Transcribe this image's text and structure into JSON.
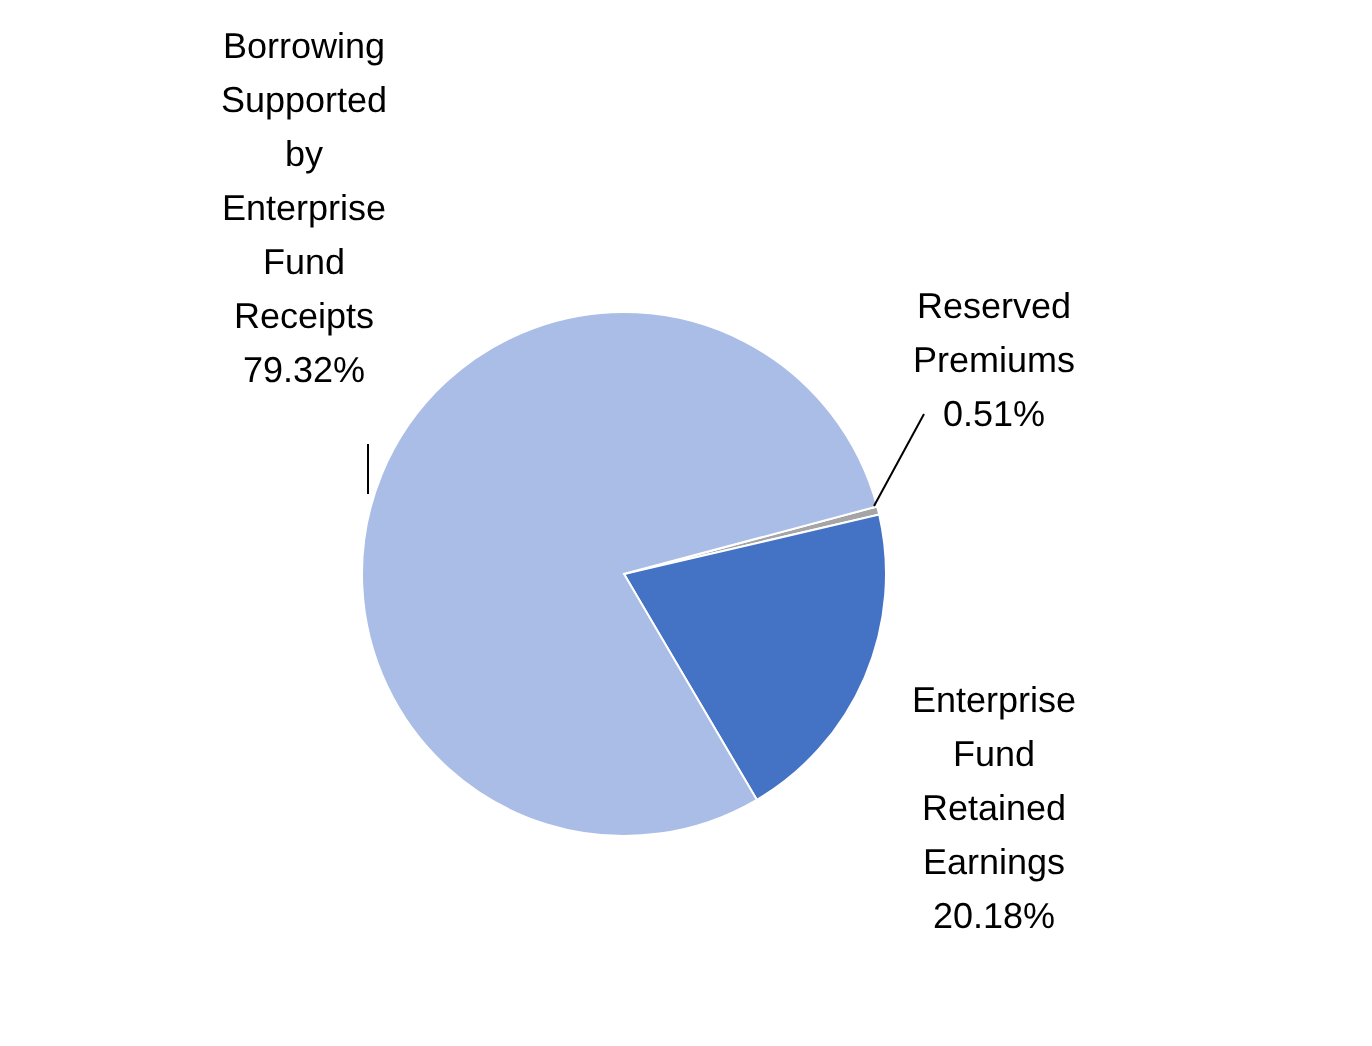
{
  "chart_data": {
    "type": "pie",
    "categories": [
      "Reserved Premiums",
      "Enterprise Fund Retained Earnings",
      "Borrowing Supported by Enterprise Fund Receipts"
    ],
    "values": [
      0.51,
      20.18,
      79.32
    ],
    "colors": [
      "#a5a5a5",
      "#4472c4",
      "#a9bde6"
    ],
    "value_labels": [
      "0.51%",
      "20.18%",
      "79.32%"
    ]
  }
}
